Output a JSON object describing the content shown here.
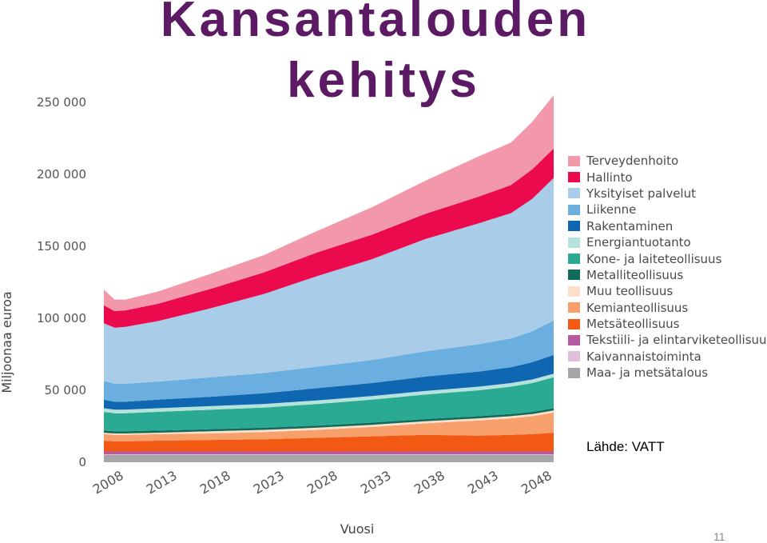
{
  "slide": {
    "title_line1": "Kansantalouden",
    "title_line2": "kehitys",
    "source": "Lähde: VATT",
    "page_number": "11"
  },
  "chart_data": {
    "type": "area",
    "stacked": true,
    "xlabel": "Vuosi",
    "ylabel": "Miljoonaa euroa",
    "ylim": [
      0,
      250000
    ],
    "yticks": [
      0,
      50000,
      100000,
      150000,
      200000,
      250000
    ],
    "ytick_labels": [
      "0",
      "50 000",
      "100 000",
      "150 000",
      "200 000",
      "250 000"
    ],
    "xticks": [
      2008,
      2013,
      2018,
      2023,
      2028,
      2033,
      2038,
      2043,
      2048
    ],
    "x": [
      2008,
      2009,
      2010,
      2013,
      2018,
      2023,
      2028,
      2033,
      2038,
      2043,
      2046,
      2048,
      2050
    ],
    "legend_position": "right",
    "grid": false,
    "series": [
      {
        "name": "Maa- ja metsätalous",
        "color": "#a6a6a6",
        "values": [
          5000,
          5000,
          5000,
          5000,
          5000,
          5000,
          5000,
          5000,
          5000,
          5000,
          5000,
          5000,
          5000
        ]
      },
      {
        "name": "Kaivannaistoiminta",
        "color": "#e3bedc",
        "values": [
          500,
          500,
          500,
          500,
          500,
          500,
          500,
          500,
          500,
          500,
          500,
          500,
          500
        ]
      },
      {
        "name": "Tekstiili- ja elintarviketeollisuus",
        "color": "#b55a9f",
        "values": [
          2000,
          2000,
          2000,
          2000,
          2000,
          2000,
          2000,
          2000,
          2000,
          2000,
          2000,
          2000,
          2000
        ]
      },
      {
        "name": "Metsäteollisuus",
        "color": "#f25a14",
        "values": [
          7500,
          7000,
          7000,
          7500,
          8000,
          8500,
          9500,
          10500,
          11500,
          11000,
          11500,
          12000,
          13000
        ]
      },
      {
        "name": "Kemianteollisuus",
        "color": "#f8a06b",
        "values": [
          4500,
          4500,
          4500,
          4500,
          4500,
          5000,
          5500,
          6500,
          8000,
          10500,
          11500,
          12500,
          14000
        ]
      },
      {
        "name": "Muu teollisuus",
        "color": "#fce0cc",
        "values": [
          1000,
          1000,
          1000,
          1000,
          1500,
          1500,
          1500,
          1500,
          1500,
          1500,
          1500,
          1500,
          1500
        ]
      },
      {
        "name": "Metalliteollisuus",
        "color": "#116b58",
        "values": [
          1500,
          1500,
          1500,
          1500,
          1500,
          1500,
          1500,
          1500,
          1500,
          1500,
          1500,
          1500,
          1500
        ]
      },
      {
        "name": "Kone- ja laiteteollisuus",
        "color": "#2aaa92",
        "values": [
          13000,
          12500,
          12500,
          13000,
          13500,
          14000,
          15000,
          16000,
          17000,
          18000,
          19000,
          20000,
          21500
        ]
      },
      {
        "name": "Energiantuotanto",
        "color": "#b6e2dc",
        "values": [
          2500,
          2500,
          2500,
          2500,
          2500,
          2500,
          2500,
          2500,
          2500,
          2500,
          2500,
          2500,
          2500
        ]
      },
      {
        "name": "Rakentaminen",
        "color": "#0f66b1",
        "values": [
          6000,
          5500,
          5500,
          6000,
          6500,
          7500,
          8500,
          9000,
          10000,
          10500,
          11000,
          12000,
          13000
        ]
      },
      {
        "name": "Liikenne",
        "color": "#6aafe0",
        "values": [
          13000,
          12500,
          12500,
          12500,
          13500,
          14000,
          15000,
          16000,
          17500,
          19000,
          20000,
          21500,
          24000
        ]
      },
      {
        "name": "Yksityiset palvelut",
        "color": "#a9cce8",
        "values": [
          40000,
          39000,
          39500,
          42000,
          48000,
          55000,
          63000,
          70000,
          78000,
          84000,
          87000,
          92000,
          99000
        ]
      },
      {
        "name": "Hallinto",
        "color": "#eb0a4e",
        "values": [
          12500,
          11500,
          11500,
          12000,
          13500,
          15000,
          16500,
          17000,
          17500,
          18500,
          19500,
          20500,
          20500
        ]
      },
      {
        "name": "Terveydenhoito",
        "color": "#f398ab",
        "values": [
          11000,
          8000,
          7500,
          8500,
          10500,
          12000,
          15000,
          19000,
          23000,
          28000,
          29500,
          33000,
          37000
        ]
      }
    ]
  }
}
